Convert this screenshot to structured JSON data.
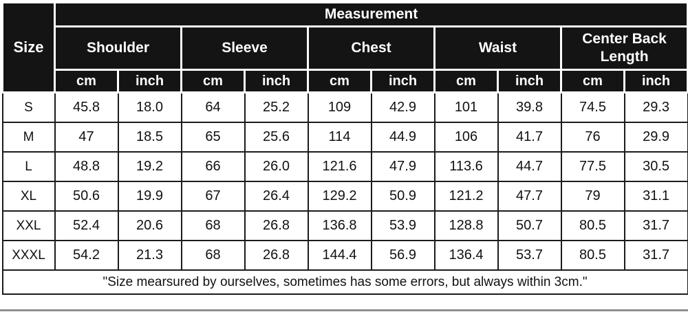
{
  "table": {
    "size_label": "Size",
    "measurement_label": "Measurement",
    "categories": [
      "Shoulder",
      "Sleeve",
      "Chest",
      "Waist",
      "Center Back Length"
    ],
    "units": [
      "cm",
      "inch",
      "cm",
      "inch",
      "cm",
      "inch",
      "cm",
      "inch",
      "cm",
      "inch"
    ],
    "rows": [
      {
        "size": "S",
        "values": [
          "45.8",
          "18.0",
          "64",
          "25.2",
          "109",
          "42.9",
          "101",
          "39.8",
          "74.5",
          "29.3"
        ]
      },
      {
        "size": "M",
        "values": [
          "47",
          "18.5",
          "65",
          "25.6",
          "114",
          "44.9",
          "106",
          "41.7",
          "76",
          "29.9"
        ]
      },
      {
        "size": "L",
        "values": [
          "48.8",
          "19.2",
          "66",
          "26.0",
          "121.6",
          "47.9",
          "113.6",
          "44.7",
          "77.5",
          "30.5"
        ]
      },
      {
        "size": "XL",
        "values": [
          "50.6",
          "19.9",
          "67",
          "26.4",
          "129.2",
          "50.9",
          "121.2",
          "47.7",
          "79",
          "31.1"
        ]
      },
      {
        "size": "XXL",
        "values": [
          "52.4",
          "20.6",
          "68",
          "26.8",
          "136.8",
          "53.9",
          "128.8",
          "50.7",
          "80.5",
          "31.7"
        ]
      },
      {
        "size": "XXXL",
        "values": [
          "54.2",
          "21.3",
          "68",
          "26.8",
          "144.4",
          "56.9",
          "136.4",
          "53.7",
          "80.5",
          "31.7"
        ]
      }
    ],
    "footnote": "\"Size mearsured by ourselves, sometimes has some errors, but always within 3cm.\""
  },
  "colors": {
    "header_bg": "#141414",
    "header_text": "#ffffff",
    "body_border": "#1b1b1b",
    "body_text": "#111111",
    "shadow_line": "#8f8f8f"
  },
  "chart_data": {
    "type": "table",
    "title": "Measurement",
    "columns": [
      "Size",
      "Shoulder cm",
      "Shoulder inch",
      "Sleeve cm",
      "Sleeve inch",
      "Chest cm",
      "Chest inch",
      "Waist cm",
      "Waist inch",
      "Center Back Length cm",
      "Center Back Length inch"
    ],
    "rows": [
      [
        "S",
        45.8,
        18.0,
        64,
        25.2,
        109,
        42.9,
        101,
        39.8,
        74.5,
        29.3
      ],
      [
        "M",
        47,
        18.5,
        65,
        25.6,
        114,
        44.9,
        106,
        41.7,
        76,
        29.9
      ],
      [
        "L",
        48.8,
        19.2,
        66,
        26.0,
        121.6,
        47.9,
        113.6,
        44.7,
        77.5,
        30.5
      ],
      [
        "XL",
        50.6,
        19.9,
        67,
        26.4,
        129.2,
        50.9,
        121.2,
        47.7,
        79,
        31.1
      ],
      [
        "XXL",
        52.4,
        20.6,
        68,
        26.8,
        136.8,
        53.9,
        128.8,
        50.7,
        80.5,
        31.7
      ],
      [
        "XXXL",
        54.2,
        21.3,
        68,
        26.8,
        144.4,
        56.9,
        136.4,
        53.7,
        80.5,
        31.7
      ]
    ],
    "footnote": "\"Size mearsured by ourselves, sometimes has some errors, but always within 3cm.\""
  }
}
